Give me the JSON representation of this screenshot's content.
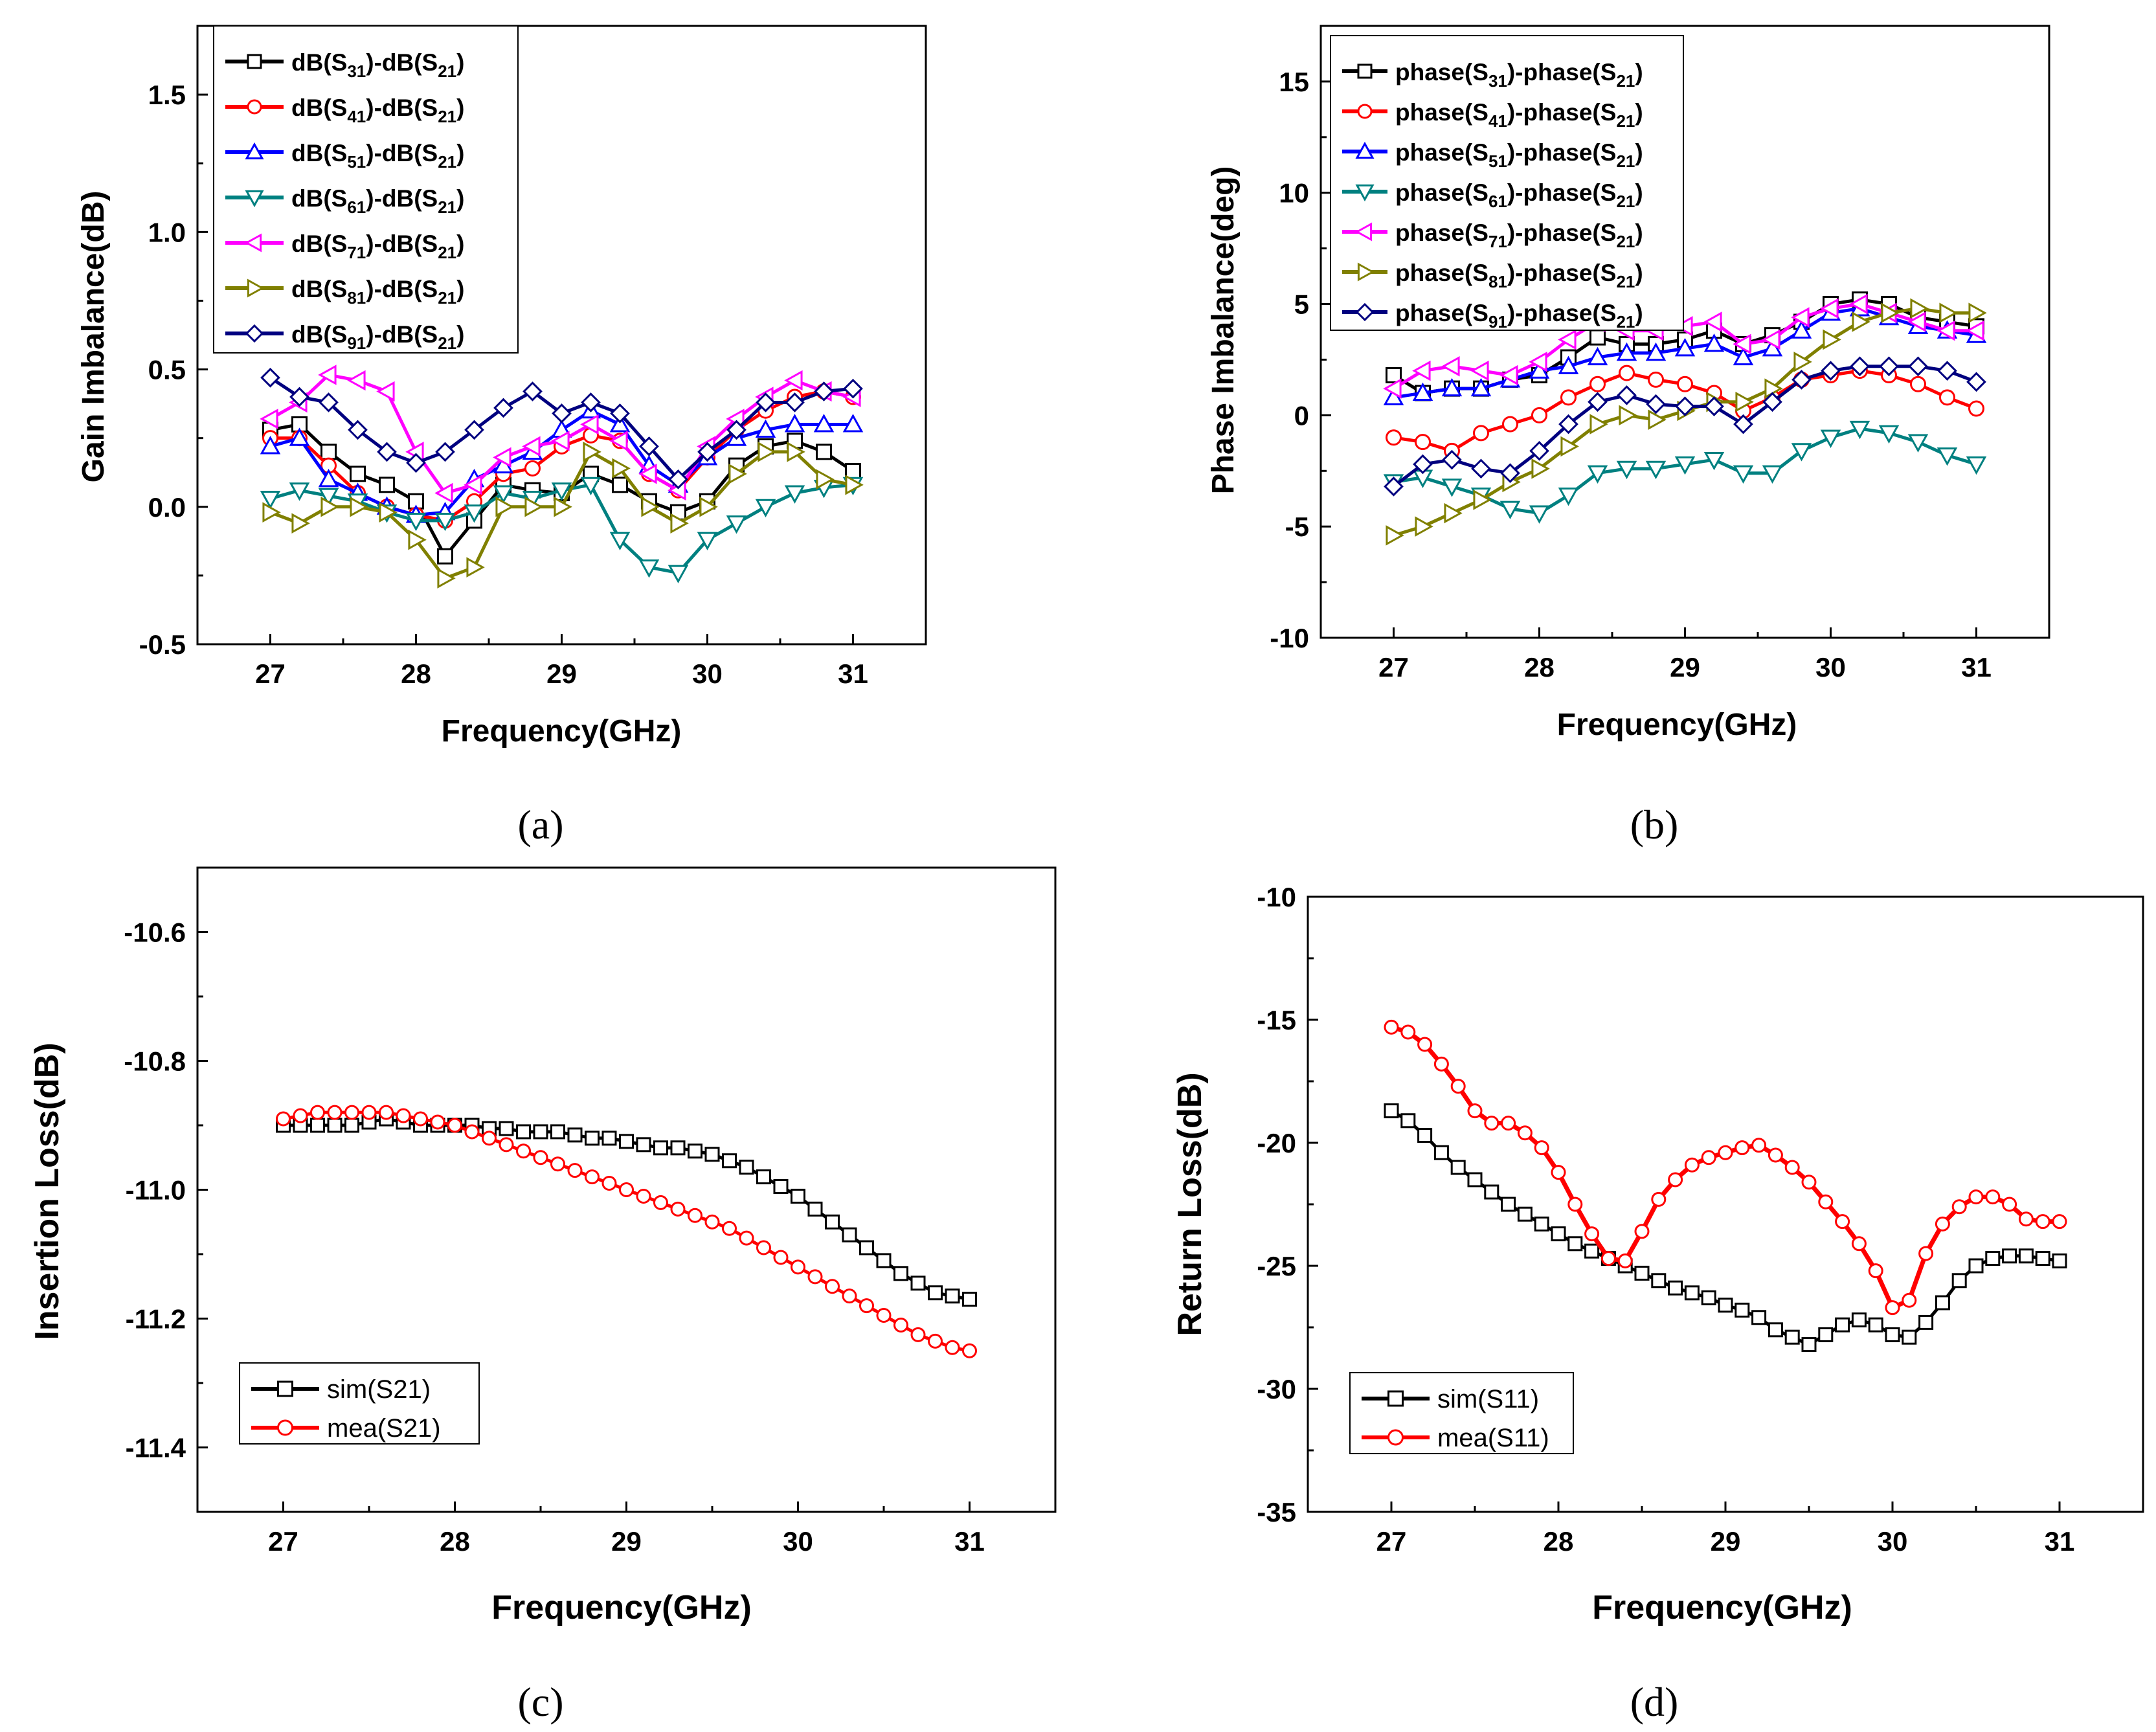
{
  "figure": {
    "captions": [
      "(a)",
      "(b)",
      "(c)",
      "(d)"
    ]
  },
  "chart_data": [
    {
      "id": "a",
      "type": "line",
      "title": "",
      "xlabel": "Frequency(GHz)",
      "ylabel": "Gain Imbalance(dB)",
      "xlim": [
        26.5,
        31.5
      ],
      "ylim": [
        -0.5,
        1.75
      ],
      "xticks": [
        27,
        28,
        29,
        30,
        31
      ],
      "yticks": [
        -0.5,
        0.0,
        0.5,
        1.0,
        1.5
      ],
      "ytick_labels": [
        "-0.5",
        "0.0",
        "0.5",
        "1.0",
        "1.5"
      ],
      "grid": false,
      "legend_position": "top-left",
      "x": [
        27.0,
        27.2,
        27.4,
        27.6,
        27.8,
        28.0,
        28.2,
        28.4,
        28.6,
        28.8,
        29.0,
        29.2,
        29.4,
        29.6,
        29.8,
        30.0,
        30.2,
        30.4,
        30.6,
        30.8,
        31.0
      ],
      "series": [
        {
          "name": "dB(S31)-dB(S21)",
          "base": "dB(S",
          "sub": "31",
          "rest": ")-dB(S",
          "sub2": "21",
          "end": ")",
          "color": "#000000",
          "marker": "square",
          "values": [
            0.28,
            0.3,
            0.2,
            0.12,
            0.08,
            0.02,
            -0.18,
            -0.05,
            0.08,
            0.06,
            0.05,
            0.12,
            0.08,
            0.02,
            -0.02,
            0.02,
            0.15,
            0.22,
            0.24,
            0.2,
            0.13
          ]
        },
        {
          "name": "dB(S41)-dB(S21)",
          "base": "dB(S",
          "sub": "41",
          "rest": ")-dB(S",
          "sub2": "21",
          "end": ")",
          "color": "#ff0000",
          "marker": "circle",
          "values": [
            0.25,
            0.25,
            0.15,
            0.05,
            0.0,
            -0.03,
            -0.05,
            0.02,
            0.12,
            0.14,
            0.22,
            0.26,
            0.24,
            0.12,
            0.06,
            0.18,
            0.28,
            0.35,
            0.4,
            0.42,
            0.4
          ]
        },
        {
          "name": "dB(S51)-dB(S21)",
          "base": "dB(S",
          "sub": "51",
          "rest": ")-dB(S",
          "sub2": "21",
          "end": ")",
          "color": "#0000ff",
          "marker": "triangle-up",
          "values": [
            0.22,
            0.25,
            0.1,
            0.05,
            0.0,
            -0.03,
            -0.02,
            0.1,
            0.15,
            0.2,
            0.28,
            0.35,
            0.3,
            0.15,
            0.08,
            0.18,
            0.25,
            0.28,
            0.3,
            0.3,
            0.3
          ]
        },
        {
          "name": "dB(S61)-dB(S21)",
          "base": "dB(S",
          "sub": "61",
          "rest": ")-dB(S",
          "sub2": "21",
          "end": ")",
          "color": "#008080",
          "marker": "triangle-down",
          "values": [
            0.03,
            0.06,
            0.04,
            0.02,
            -0.02,
            -0.05,
            -0.05,
            -0.02,
            0.05,
            0.03,
            0.06,
            0.08,
            -0.12,
            -0.22,
            -0.24,
            -0.12,
            -0.06,
            0.0,
            0.05,
            0.07,
            0.08
          ]
        },
        {
          "name": "dB(S71)-dB(S21)",
          "base": "dB(S",
          "sub": "71",
          "rest": ")-dB(S",
          "sub2": "21",
          "end": ")",
          "color": "#ff00ff",
          "marker": "triangle-left",
          "values": [
            0.32,
            0.38,
            0.48,
            0.46,
            0.42,
            0.2,
            0.05,
            0.08,
            0.18,
            0.22,
            0.24,
            0.3,
            0.24,
            0.12,
            0.06,
            0.22,
            0.32,
            0.4,
            0.46,
            0.42,
            0.4
          ]
        },
        {
          "name": "dB(S81)-dB(S21)",
          "base": "dB(S",
          "sub": "81",
          "rest": ")-dB(S",
          "sub2": "21",
          "end": ")",
          "color": "#808000",
          "marker": "triangle-right",
          "values": [
            -0.02,
            -0.06,
            0.0,
            0.0,
            -0.02,
            -0.12,
            -0.26,
            -0.22,
            0.0,
            0.0,
            0.0,
            0.2,
            0.14,
            0.0,
            -0.06,
            0.0,
            0.12,
            0.2,
            0.2,
            0.1,
            0.08
          ]
        },
        {
          "name": "dB(S91)-dB(S21)",
          "base": "dB(S",
          "sub": "91",
          "rest": ")-dB(S",
          "sub2": "21",
          "end": ")",
          "color": "#00007f",
          "marker": "diamond",
          "values": [
            0.47,
            0.4,
            0.38,
            0.28,
            0.2,
            0.16,
            0.2,
            0.28,
            0.36,
            0.42,
            0.34,
            0.38,
            0.34,
            0.22,
            0.1,
            0.2,
            0.28,
            0.38,
            0.38,
            0.42,
            0.43
          ]
        }
      ]
    },
    {
      "id": "b",
      "type": "line",
      "title": "",
      "xlabel": "Frequency(GHz)",
      "ylabel": "Phase Imbalance(deg)",
      "xlim": [
        26.5,
        31.5
      ],
      "ylim": [
        -10,
        17.5
      ],
      "xticks": [
        27,
        28,
        29,
        30,
        31
      ],
      "yticks": [
        -10,
        -5,
        0,
        5,
        10,
        15
      ],
      "ytick_labels": [
        "-10",
        "-5",
        "0",
        "5",
        "10",
        "15"
      ],
      "grid": false,
      "legend_position": "top-left",
      "x": [
        27.0,
        27.2,
        27.4,
        27.6,
        27.8,
        28.0,
        28.2,
        28.4,
        28.6,
        28.8,
        29.0,
        29.2,
        29.4,
        29.6,
        29.8,
        30.0,
        30.2,
        30.4,
        30.6,
        30.8,
        31.0
      ],
      "series": [
        {
          "name": "phase(S31)-phase(S21)",
          "base": "phase(S",
          "sub": "31",
          "rest": ")-phase(S",
          "sub2": "21",
          "end": ")",
          "color": "#000000",
          "marker": "square",
          "values": [
            1.8,
            1.0,
            1.2,
            1.2,
            1.6,
            1.8,
            2.6,
            3.5,
            3.2,
            3.2,
            3.4,
            3.8,
            3.2,
            3.6,
            4.2,
            5.0,
            5.2,
            5.0,
            4.4,
            4.2,
            4.0
          ]
        },
        {
          "name": "phase(S41)-phase(S21)",
          "base": "phase(S",
          "sub": "41",
          "rest": ")-phase(S",
          "sub2": "21",
          "end": ")",
          "color": "#ff0000",
          "marker": "circle",
          "values": [
            -1.0,
            -1.2,
            -1.6,
            -0.8,
            -0.4,
            0.0,
            0.8,
            1.4,
            1.9,
            1.6,
            1.4,
            1.0,
            0.2,
            0.8,
            1.6,
            1.8,
            2.0,
            1.8,
            1.4,
            0.8,
            0.3
          ]
        },
        {
          "name": "phase(S51)-phase(S21)",
          "base": "phase(S",
          "sub": "51",
          "rest": ")-phase(S",
          "sub2": "21",
          "end": ")",
          "color": "#0000ff",
          "marker": "triangle-up",
          "values": [
            0.8,
            1.0,
            1.2,
            1.2,
            1.6,
            2.0,
            2.2,
            2.6,
            2.8,
            2.8,
            3.0,
            3.2,
            2.6,
            3.0,
            3.8,
            4.6,
            4.8,
            4.4,
            4.0,
            3.8,
            3.6
          ]
        },
        {
          "name": "phase(S61)-phase(S21)",
          "base": "phase(S",
          "sub": "61",
          "rest": ")-phase(S",
          "sub2": "21",
          "end": ")",
          "color": "#008080",
          "marker": "triangle-down",
          "values": [
            -3.0,
            -2.8,
            -3.2,
            -3.6,
            -4.2,
            -4.4,
            -3.6,
            -2.6,
            -2.4,
            -2.4,
            -2.2,
            -2.0,
            -2.6,
            -2.6,
            -1.6,
            -1.0,
            -0.6,
            -0.8,
            -1.2,
            -1.8,
            -2.2
          ]
        },
        {
          "name": "phase(S71)-phase(S21)",
          "base": "phase(S",
          "sub": "71",
          "rest": ")-phase(S",
          "sub2": "21",
          "end": ")",
          "color": "#ff00ff",
          "marker": "triangle-left",
          "values": [
            1.2,
            2.0,
            2.2,
            2.0,
            1.8,
            2.4,
            3.4,
            4.2,
            3.8,
            3.8,
            4.0,
            4.2,
            3.2,
            3.4,
            4.4,
            4.8,
            5.0,
            4.6,
            4.2,
            3.8,
            3.8
          ]
        },
        {
          "name": "phase(S81)-phase(S21)",
          "base": "phase(S",
          "sub": "81",
          "rest": ")-phase(S",
          "sub2": "21",
          "end": ")",
          "color": "#808000",
          "marker": "triangle-right",
          "values": [
            -5.4,
            -5.0,
            -4.4,
            -3.8,
            -3.0,
            -2.4,
            -1.4,
            -0.4,
            0.0,
            -0.2,
            0.2,
            0.6,
            0.6,
            1.2,
            2.4,
            3.4,
            4.2,
            4.6,
            4.8,
            4.6,
            4.6
          ]
        },
        {
          "name": "phase(S91)-phase(S21)",
          "base": "phase(S",
          "sub": "91",
          "rest": ")-phase(S",
          "sub2": "21",
          "end": ")",
          "color": "#00007f",
          "marker": "diamond",
          "values": [
            -3.2,
            -2.2,
            -2.0,
            -2.4,
            -2.6,
            -1.6,
            -0.4,
            0.6,
            0.9,
            0.5,
            0.4,
            0.4,
            -0.4,
            0.6,
            1.6,
            2.0,
            2.2,
            2.2,
            2.2,
            2.0,
            1.5
          ]
        }
      ]
    },
    {
      "id": "c",
      "type": "line",
      "title": "",
      "xlabel": "Frequency(GHz)",
      "ylabel": "Insertion Loss(dB)",
      "xlim": [
        26.5,
        31.5
      ],
      "ylim": [
        -11.5,
        -10.5
      ],
      "xticks": [
        27,
        28,
        29,
        30,
        31
      ],
      "yticks": [
        -11.4,
        -11.2,
        -11.0,
        -10.8,
        -10.6
      ],
      "ytick_labels": [
        "-11.4",
        "-11.2",
        "-11.0",
        "-10.8",
        "-10.6"
      ],
      "grid": false,
      "legend_position": "bottom-left",
      "x": [
        27.0,
        27.1,
        27.2,
        27.3,
        27.4,
        27.5,
        27.6,
        27.7,
        27.8,
        27.9,
        28.0,
        28.1,
        28.2,
        28.3,
        28.4,
        28.5,
        28.6,
        28.7,
        28.8,
        28.9,
        29.0,
        29.1,
        29.2,
        29.3,
        29.4,
        29.5,
        29.6,
        29.7,
        29.8,
        29.9,
        30.0,
        30.1,
        30.2,
        30.3,
        30.4,
        30.5,
        30.6,
        30.7,
        30.8,
        30.9,
        31.0
      ],
      "series": [
        {
          "name": "sim(S21)",
          "color": "#000000",
          "marker": "square",
          "values": [
            -10.9,
            -10.9,
            -10.9,
            -10.9,
            -10.9,
            -10.895,
            -10.89,
            -10.895,
            -10.9,
            -10.9,
            -10.9,
            -10.9,
            -10.905,
            -10.905,
            -10.91,
            -10.91,
            -10.91,
            -10.915,
            -10.92,
            -10.92,
            -10.925,
            -10.93,
            -10.935,
            -10.935,
            -10.94,
            -10.945,
            -10.955,
            -10.965,
            -10.98,
            -10.995,
            -11.01,
            -11.03,
            -11.05,
            -11.07,
            -11.09,
            -11.11,
            -11.13,
            -11.145,
            -11.16,
            -11.165,
            -11.17
          ]
        },
        {
          "name": "mea(S21)",
          "color": "#ff0000",
          "marker": "circle",
          "values": [
            -10.89,
            -10.885,
            -10.88,
            -10.88,
            -10.88,
            -10.88,
            -10.88,
            -10.885,
            -10.89,
            -10.895,
            -10.9,
            -10.91,
            -10.92,
            -10.93,
            -10.94,
            -10.95,
            -10.96,
            -10.97,
            -10.98,
            -10.99,
            -11.0,
            -11.01,
            -11.02,
            -11.03,
            -11.04,
            -11.05,
            -11.06,
            -11.075,
            -11.09,
            -11.105,
            -11.12,
            -11.135,
            -11.15,
            -11.165,
            -11.18,
            -11.195,
            -11.21,
            -11.225,
            -11.235,
            -11.245,
            -11.25
          ]
        }
      ]
    },
    {
      "id": "d",
      "type": "line",
      "title": "",
      "xlabel": "Frequency(GHz)",
      "ylabel": "Return Loss(dB)",
      "xlim": [
        26.5,
        31.5
      ],
      "ylim": [
        -35,
        -10
      ],
      "xticks": [
        27,
        28,
        29,
        30,
        31
      ],
      "yticks": [
        -35,
        -30,
        -25,
        -20,
        -15,
        -10
      ],
      "ytick_labels": [
        "-35",
        "-30",
        "-25",
        "-20",
        "-15",
        "-10"
      ],
      "grid": false,
      "legend_position": "bottom-left",
      "x": [
        27.0,
        27.1,
        27.2,
        27.3,
        27.4,
        27.5,
        27.6,
        27.7,
        27.8,
        27.9,
        28.0,
        28.1,
        28.2,
        28.3,
        28.4,
        28.5,
        28.6,
        28.7,
        28.8,
        28.9,
        29.0,
        29.1,
        29.2,
        29.3,
        29.4,
        29.5,
        29.6,
        29.7,
        29.8,
        29.9,
        30.0,
        30.1,
        30.2,
        30.3,
        30.4,
        30.5,
        30.6,
        30.7,
        30.8,
        30.9,
        31.0
      ],
      "series": [
        {
          "name": "sim(S11)",
          "color": "#000000",
          "marker": "square",
          "values": [
            -18.7,
            -19.1,
            -19.7,
            -20.4,
            -21.0,
            -21.5,
            -22.0,
            -22.5,
            -22.9,
            -23.3,
            -23.7,
            -24.1,
            -24.4,
            -24.7,
            -25.0,
            -25.3,
            -25.6,
            -25.9,
            -26.1,
            -26.3,
            -26.6,
            -26.8,
            -27.1,
            -27.6,
            -27.9,
            -28.2,
            -27.8,
            -27.4,
            -27.2,
            -27.4,
            -27.8,
            -27.9,
            -27.3,
            -26.5,
            -25.6,
            -25.0,
            -24.7,
            -24.6,
            -24.6,
            -24.7,
            -24.8
          ]
        },
        {
          "name": "mea(S11)",
          "color": "#ff0000",
          "marker": "circle",
          "values": [
            -15.3,
            -15.5,
            -16.0,
            -16.8,
            -17.7,
            -18.7,
            -19.2,
            -19.2,
            -19.6,
            -20.2,
            -21.2,
            -22.5,
            -23.7,
            -24.7,
            -24.8,
            -23.6,
            -22.3,
            -21.5,
            -20.9,
            -20.6,
            -20.4,
            -20.2,
            -20.1,
            -20.5,
            -21.0,
            -21.6,
            -22.4,
            -23.2,
            -24.1,
            -25.2,
            -26.7,
            -26.4,
            -24.5,
            -23.3,
            -22.6,
            -22.2,
            -22.2,
            -22.5,
            -23.1,
            -23.2,
            -23.2
          ]
        }
      ]
    }
  ]
}
